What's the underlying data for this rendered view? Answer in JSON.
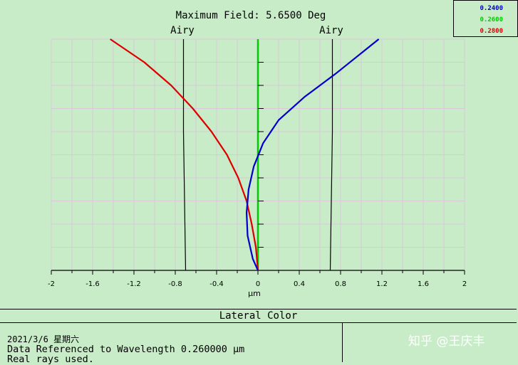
{
  "chart_data": {
    "type": "line",
    "title": "Maximum Field: 5.6500 Deg",
    "xlabel": "µm",
    "xlim": [
      -2,
      2
    ],
    "xticks": [
      "-2",
      "-1.6",
      "-1.2",
      "-0.8",
      "-0.4",
      "0",
      "0.4",
      "0.8",
      "1.2",
      "1.6",
      "2"
    ],
    "ylim": [
      0,
      1
    ],
    "grid": true,
    "airy_label": "Airy",
    "airy_radius": 0.7,
    "legend_position": "top-right",
    "series": [
      {
        "name": "0.2400",
        "color": "#0000cc",
        "x": [
          0.0,
          -0.05,
          -0.1,
          -0.11,
          -0.09,
          -0.04,
          0.05,
          0.2,
          0.45,
          0.75,
          1.17
        ],
        "y": [
          0.0,
          0.05,
          0.15,
          0.25,
          0.35,
          0.45,
          0.55,
          0.65,
          0.75,
          0.85,
          1.0
        ]
      },
      {
        "name": "0.2600",
        "color": "#00cc00",
        "x": [
          0.0,
          0.0
        ],
        "y": [
          0.0,
          1.0
        ]
      },
      {
        "name": "0.2800",
        "color": "#dd0000",
        "x": [
          0.0,
          -0.02,
          -0.06,
          -0.11,
          -0.19,
          -0.3,
          -0.45,
          -0.63,
          -0.84,
          -1.1,
          -1.43
        ],
        "y": [
          0.0,
          0.1,
          0.2,
          0.3,
          0.4,
          0.5,
          0.6,
          0.7,
          0.8,
          0.9,
          1.0
        ]
      }
    ]
  },
  "caption": "Lateral Color",
  "info": {
    "date": "2021/3/6 星期六",
    "reference": "Data Referenced to Wavelength 0.260000 µm",
    "rays": "Real rays used."
  },
  "watermark": "知乎 @王庆丰"
}
